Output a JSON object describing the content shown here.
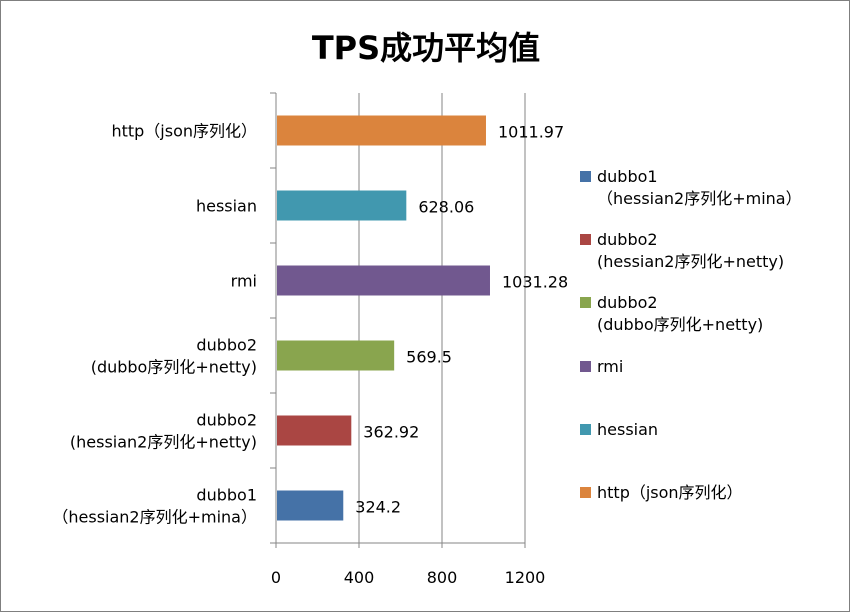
{
  "chart_data": {
    "type": "bar",
    "orientation": "horizontal",
    "title": "TPS成功平均值",
    "categories": [
      [
        "dubbo1",
        "（hessian2序列化+mina）"
      ],
      [
        "dubbo2",
        "(hessian2序列化+netty)"
      ],
      [
        "dubbo2",
        "(dubbo序列化+netty)"
      ],
      [
        "rmi"
      ],
      [
        "hessian"
      ],
      [
        "http（json序列化）"
      ]
    ],
    "values": [
      324.2,
      362.92,
      569.5,
      1031.28,
      628.06,
      1011.97
    ],
    "value_labels": [
      "324.2",
      "362.92",
      "569.5",
      "1031.28",
      "628.06",
      "1011.97"
    ],
    "colors": [
      "#4572a7",
      "#aa4643",
      "#89a54e",
      "#71588f",
      "#4198af",
      "#db843d"
    ],
    "xlim": [
      0,
      1200
    ],
    "xticks": [
      "0",
      "400",
      "800",
      "1200"
    ],
    "xtick_values": [
      0,
      400,
      800,
      1200
    ],
    "grid": "vertical",
    "legend": "right",
    "xlabel": "",
    "ylabel": ""
  }
}
